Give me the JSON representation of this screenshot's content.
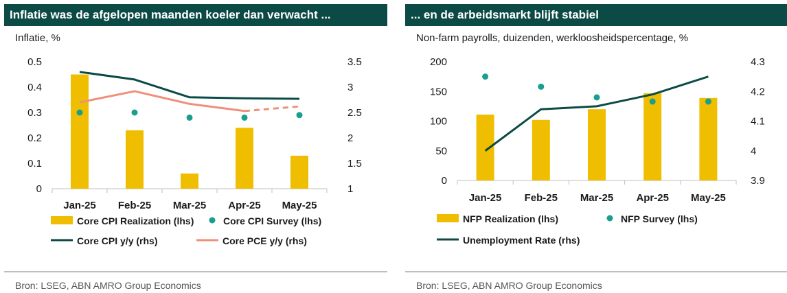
{
  "colors": {
    "header_bg": "#0b4a45",
    "bar": "#f0be00",
    "survey_dot": "#1a9e8f",
    "dark_line": "#0b4a45",
    "pce_line": "#f08f7a"
  },
  "source": "Bron:  LSEG, ABN AMRO Group Economics",
  "chart_data": [
    {
      "type": "bar",
      "title": "Inflatie was de afgelopen maanden koeler dan verwacht ...",
      "subtitle": "Inflatie, %",
      "categories": [
        "Jan-25",
        "Feb-25",
        "Mar-25",
        "Apr-25",
        "May-25"
      ],
      "ylim_left": [
        0,
        0.5
      ],
      "yticks_left": [
        "0",
        "0.1",
        "0.2",
        "0.3",
        "0.4",
        "0.5"
      ],
      "ylim_right": [
        1,
        3.5
      ],
      "yticks_right": [
        "1",
        "1.5",
        "2",
        "2.5",
        "3",
        "3.5"
      ],
      "series": [
        {
          "name": "Core CPI Realization (lhs)",
          "kind": "bar",
          "axis": "left",
          "values": [
            0.45,
            0.23,
            0.06,
            0.24,
            0.13
          ]
        },
        {
          "name": "Core CPI Survey (lhs)",
          "kind": "dot",
          "axis": "left",
          "values": [
            0.3,
            0.3,
            0.28,
            0.28,
            0.29
          ]
        },
        {
          "name": "Core CPI y/y (rhs)",
          "kind": "line",
          "axis": "right",
          "values": [
            3.3,
            3.15,
            2.8,
            2.78,
            2.77
          ]
        },
        {
          "name": "Core PCE y/y (rhs)",
          "kind": "line",
          "axis": "right",
          "values": [
            2.7,
            2.92,
            2.67,
            2.53,
            2.62
          ],
          "dashed_from_index": 3
        }
      ],
      "legend": [
        {
          "label": "Core CPI Realization (lhs)",
          "marker": "bar"
        },
        {
          "label": "Core CPI Survey (lhs)",
          "marker": "dot"
        },
        {
          "label": "Core CPI y/y (rhs)",
          "marker": "line-dark"
        },
        {
          "label": "Core PCE y/y (rhs)",
          "marker": "line-pce"
        }
      ],
      "grid": false,
      "legend_position": "bottom"
    },
    {
      "type": "bar",
      "title": "... en de arbeidsmarkt blijft stabiel",
      "subtitle": "Non-farm payrolls, duizenden, werkloosheidspercentage, %",
      "categories": [
        "Jan-25",
        "Feb-25",
        "Mar-25",
        "Apr-25",
        "May-25"
      ],
      "ylim_left": [
        0,
        200
      ],
      "yticks_left": [
        "0",
        "50",
        "100",
        "150",
        "200"
      ],
      "ylim_right": [
        3.9,
        4.3
      ],
      "yticks_right": [
        "3.9",
        "4",
        "4.1",
        "4.2",
        "4.3"
      ],
      "series": [
        {
          "name": "NFP Realization (lhs)",
          "kind": "bar",
          "axis": "left",
          "values": [
            111,
            102,
            120,
            147,
            139
          ]
        },
        {
          "name": "NFP Survey (lhs)",
          "kind": "dot",
          "axis": "left",
          "values": [
            175,
            158,
            140,
            133,
            133
          ]
        },
        {
          "name": "Unemployment Rate (rhs)",
          "kind": "line",
          "axis": "right",
          "values": [
            4.0,
            4.14,
            4.15,
            4.19,
            4.25
          ]
        }
      ],
      "legend": [
        {
          "label": "NFP Realization (lhs)",
          "marker": "bar"
        },
        {
          "label": "NFP Survey (lhs)",
          "marker": "dot"
        },
        {
          "label": "Unemployment Rate (rhs)",
          "marker": "line-dark"
        }
      ],
      "grid": false,
      "legend_position": "bottom"
    }
  ]
}
